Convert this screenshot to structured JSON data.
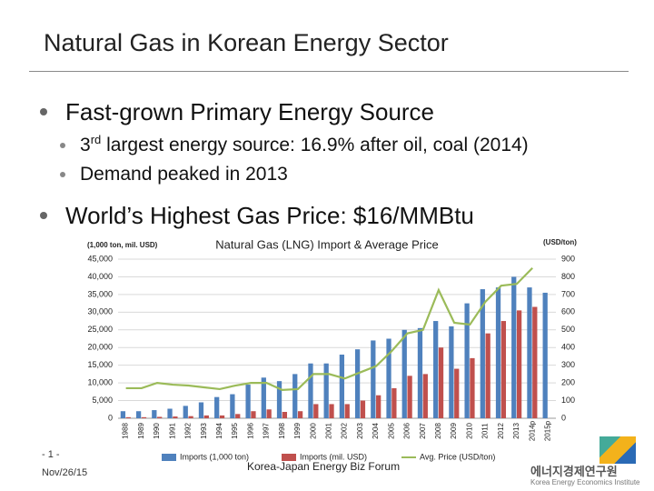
{
  "title": "Natural Gas in Korean Energy Sector",
  "bullets": [
    {
      "text": "Fast-grown Primary Energy Source",
      "subs": [
        {
          "lead": "3",
          "sup": "rd",
          "rest": " largest energy source: 16.9% after oil, coal (2014)"
        },
        "Demand peaked in 2013"
      ]
    },
    {
      "text": "World’s Highest Gas Price: $16/MMBtu"
    }
  ],
  "footer": {
    "page": "- 1 -",
    "date": "Nov/26/15",
    "event": "Korea-Japan Energy Biz Forum",
    "org": "에너지경제연구원",
    "org_en": "Korea Energy Economics Institute"
  },
  "chart_data": {
    "type": "bar-line",
    "title": "Natural Gas (LNG) Import & Average Price",
    "y_label": "(1,000 ton, mil. USD)",
    "y2_label": "(USD/ton)",
    "categories": [
      "1988",
      "1989",
      "1990",
      "1991",
      "1992",
      "1993",
      "1994",
      "1995",
      "1996",
      "1997",
      "1998",
      "1999",
      "2000",
      "2001",
      "2002",
      "2003",
      "2004",
      "2005",
      "2006",
      "2007",
      "2008",
      "2009",
      "2010",
      "2011",
      "2012",
      "2013",
      "2014p",
      "2015p"
    ],
    "series": [
      {
        "name": "Imports (1,000 ton)",
        "color": "#4f81bd",
        "kind": "bar",
        "values": [
          2000,
          2000,
          2300,
          2700,
          3500,
          4500,
          6000,
          6800,
          9500,
          11500,
          10500,
          12500,
          15500,
          15500,
          18000,
          19500,
          22000,
          22500,
          25000,
          25500,
          27500,
          26000,
          32500,
          36500,
          37000,
          40000,
          37000,
          35500
        ]
      },
      {
        "name": "Imports (mil. USD)",
        "color": "#c0504d",
        "kind": "bar",
        "values": [
          300,
          300,
          400,
          500,
          600,
          800,
          800,
          1200,
          2000,
          2500,
          1800,
          2000,
          4000,
          4000,
          4000,
          5000,
          6500,
          8500,
          12000,
          12500,
          20000,
          14000,
          17000,
          24000,
          27500,
          30500,
          31500,
          null
        ]
      },
      {
        "name": "Avg. Price (USD/ton)",
        "color": "#9bbb59",
        "kind": "line",
        "axis": "y2",
        "values": [
          170,
          170,
          200,
          190,
          185,
          175,
          165,
          185,
          200,
          200,
          160,
          165,
          250,
          250,
          225,
          260,
          295,
          380,
          480,
          500,
          725,
          540,
          530,
          660,
          750,
          760,
          850,
          null
        ]
      }
    ],
    "ylim": [
      0,
      45000
    ],
    "yticks": [
      0,
      {
        "value": 5000,
        "label": "5,000"
      },
      {
        "value": 10000,
        "label": "10,000"
      },
      {
        "value": 15000,
        "label": "15,000"
      },
      {
        "value": 20000,
        "label": "20,000"
      },
      {
        "value": 25000,
        "label": "25,000"
      },
      {
        "value": 30000,
        "label": "30,000"
      },
      {
        "value": 35000,
        "label": "35,000"
      },
      {
        "value": 40000,
        "label": "40,000"
      },
      {
        "value": 45000,
        "label": "45,000"
      }
    ],
    "y2lim": [
      0,
      900
    ],
    "y2ticks": [
      0,
      100,
      200,
      300,
      400,
      500,
      600,
      700,
      800,
      900
    ],
    "grid": true
  }
}
